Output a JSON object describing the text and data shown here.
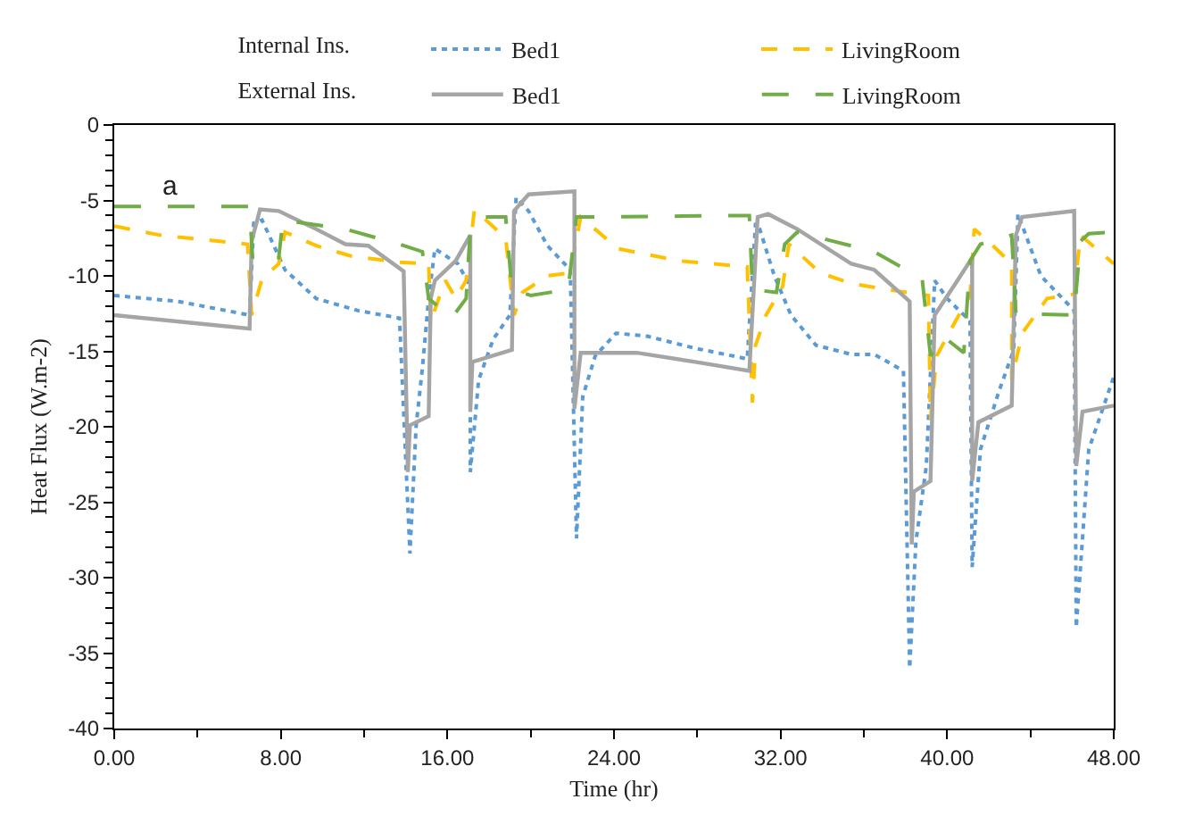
{
  "chart_data": {
    "type": "line",
    "xlabel": "Time (hr)",
    "ylabel": "Heat Flux (W.m-2)",
    "annotations": [
      "a",
      "Internal Ins.",
      "External Ins."
    ],
    "xlim": [
      0,
      48
    ],
    "xticks": [
      {
        "value": 0,
        "label": "0.00"
      },
      {
        "value": 8,
        "label": "8.00"
      },
      {
        "value": 16,
        "label": "16.00"
      },
      {
        "value": 24,
        "label": "24.00"
      },
      {
        "value": 32,
        "label": "32.00"
      },
      {
        "value": 40,
        "label": "40.00"
      },
      {
        "value": 48,
        "label": "48.00"
      }
    ],
    "ylim": [
      -40,
      0
    ],
    "yticks": [
      -40,
      -35,
      -30,
      -25,
      -20,
      -15,
      -10,
      -5,
      0
    ],
    "grid": false,
    "legend": "top",
    "marker": "none",
    "series": [
      {
        "name": "Bed1",
        "color": "#5b9bd5",
        "line_style": "dotted",
        "x": [
          0,
          3.1,
          6.5,
          6.7,
          7.1,
          8.2,
          9.7,
          11.7,
          13.7,
          14.2,
          14.5,
          14.8,
          15.1,
          15.4,
          16.5,
          17.1,
          17.1,
          17.5,
          18.2,
          19.0,
          19.3,
          19.9,
          20.8,
          21.9,
          22.2,
          22.5,
          23.1,
          24.1,
          25.6,
          27.9,
          30.4,
          30.8,
          31.0,
          31.7,
          32.5,
          33.7,
          35.4,
          36.5,
          37.9,
          38.2,
          38.5,
          39.0,
          39.4,
          40.0,
          41.1,
          41.2,
          41.6,
          42.5,
          43.2,
          43.4,
          44.5,
          46.1,
          46.2,
          46.8,
          48
        ],
        "values": [
          -11.3,
          -11.7,
          -12.6,
          -6.5,
          -6.3,
          -9.6,
          -11.5,
          -12.3,
          -12.8,
          -28.4,
          -19.9,
          -16.1,
          -11.5,
          -8.2,
          -9.2,
          -10.7,
          -23,
          -16.9,
          -14.2,
          -12.6,
          -4.8,
          -5.7,
          -8,
          -9.6,
          -27.4,
          -18,
          -15.3,
          -13.8,
          -14,
          -14.8,
          -15.5,
          -6.5,
          -6.9,
          -10,
          -12.6,
          -14.6,
          -15.2,
          -15.2,
          -16.3,
          -36,
          -27.6,
          -22.6,
          -10.3,
          -11.5,
          -13,
          -29.3,
          -21.5,
          -17.6,
          -14.9,
          -5.9,
          -10,
          -12.3,
          -33.3,
          -21.5,
          -16.7
        ]
      },
      {
        "name": "LivingRoom",
        "color": "#ffc000",
        "line_style": "dashed",
        "x": [
          0,
          2.2,
          6.4,
          6.6,
          7.1,
          7.9,
          8.2,
          9.7,
          11.4,
          13.7,
          15.1,
          15.2,
          15.9,
          16.4,
          16.9,
          17.3,
          18.8,
          19.2,
          19.6,
          20.8,
          21.9,
          22.4,
          24.2,
          27.1,
          30.4,
          30.65,
          30.8,
          31.3,
          32.1,
          32.4,
          33.9,
          35.4,
          37.1,
          39.1,
          39.2,
          39.5,
          40.4,
          41.1,
          41.3,
          42.2,
          43.1,
          43.1,
          43.6,
          44.8,
          46.1,
          46.4,
          48
        ],
        "values": [
          -6.7,
          -7.3,
          -7.9,
          -12.6,
          -10.2,
          -9.2,
          -7.1,
          -8,
          -8.7,
          -9.1,
          -9.2,
          -13,
          -10.3,
          -11.5,
          -10.3,
          -5.6,
          -7.5,
          -12.6,
          -11.1,
          -10,
          -9.8,
          -6.1,
          -8.2,
          -9,
          -9.4,
          -18.4,
          -14.6,
          -12.6,
          -10.7,
          -7.9,
          -9.8,
          -10.5,
          -10.9,
          -11.3,
          -19.5,
          -15.3,
          -13,
          -11.3,
          -6.9,
          -8,
          -9.2,
          -16.9,
          -13.8,
          -11.5,
          -11.2,
          -7.3,
          -9.2
        ]
      },
      {
        "name": "Bed1",
        "color": "#a5a5a5",
        "line_style": "solid",
        "x": [
          0,
          6.5,
          6.6,
          7.0,
          7.9,
          9.7,
          11.1,
          12.2,
          13.9,
          14.1,
          14.2,
          15.1,
          15.2,
          15.4,
          16.4,
          17.1,
          17.1,
          17.2,
          19.1,
          19.2,
          19.9,
          22.1,
          22.1,
          22.4,
          25.1,
          27.9,
          30.5,
          30.9,
          31.4,
          32.8,
          35.4,
          36.5,
          38.2,
          38.3,
          38.4,
          39.2,
          39.4,
          40.5,
          41.2,
          41.2,
          41.5,
          43.1,
          43.3,
          43.6,
          46.1,
          46.2,
          46.5,
          48
        ],
        "values": [
          -12.6,
          -13.5,
          -7.7,
          -5.6,
          -5.7,
          -6.9,
          -7.9,
          -8,
          -9.7,
          -23,
          -19.9,
          -19.3,
          -11.5,
          -10.3,
          -9,
          -7.3,
          -19,
          -15.7,
          -14.9,
          -5.7,
          -4.6,
          -4.4,
          -18.8,
          -15.1,
          -15.1,
          -15.7,
          -16.3,
          -6.1,
          -5.9,
          -6.9,
          -9.2,
          -9.6,
          -11.7,
          -27.8,
          -24.3,
          -23.6,
          -12.6,
          -10.3,
          -8.8,
          -23.6,
          -19.7,
          -18.6,
          -7.3,
          -6.1,
          -5.7,
          -22.6,
          -19,
          -18.6
        ]
      },
      {
        "name": "LivingRoom",
        "color": "#70ad47",
        "line_style": "dashed",
        "x": [
          0,
          6.5,
          6.65,
          7.9,
          8.1,
          11.1,
          13.7,
          14.8,
          15.1,
          16.2,
          16.9,
          17.1,
          17.7,
          18.8,
          19.1,
          20.0,
          21.8,
          22.2,
          30.5,
          30.65,
          31.8,
          32.2,
          32.8,
          36.5,
          38.8,
          39.2,
          39.8,
          40.8,
          41.1,
          41.6,
          43.1,
          43.3,
          46.1,
          46.4,
          46.8,
          48
        ],
        "values": [
          -5.4,
          -5.4,
          -9,
          -8.8,
          -6.3,
          -6.9,
          -7.9,
          -8.4,
          -11.5,
          -12.8,
          -11.5,
          -6.9,
          -6.1,
          -6.1,
          -10.9,
          -11.3,
          -10.9,
          -6.1,
          -6,
          -10.9,
          -11.1,
          -7.9,
          -7.1,
          -8.4,
          -10.2,
          -15.3,
          -14,
          -15.1,
          -9,
          -7.9,
          -7.3,
          -12.5,
          -12.6,
          -7.7,
          -7.2,
          -7.1
        ]
      }
    ]
  }
}
